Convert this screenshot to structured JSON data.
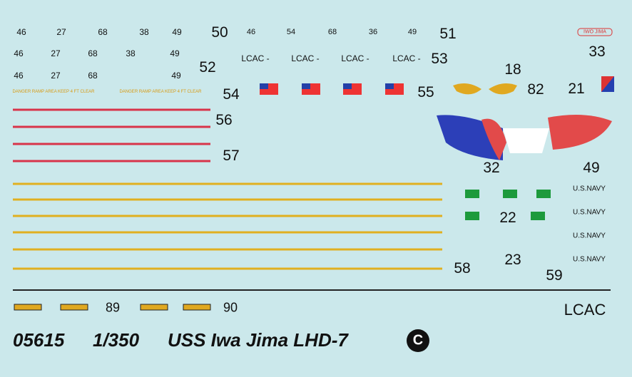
{
  "badge": "IWO JIMA",
  "hull_numbers": [
    [
      "46",
      "27",
      "68",
      "38",
      "49"
    ],
    [
      "46",
      "27",
      "68",
      "38",
      "49"
    ],
    [
      "46",
      "27",
      "68",
      "49"
    ]
  ],
  "lcac_numbers": [
    "46",
    "54",
    "68",
    "36",
    "49"
  ],
  "lcac_labels": [
    "LCAC -",
    "LCAC -",
    "LCAC -",
    "LCAC -"
  ],
  "danger_text": [
    "DANGER RAMP AREA KEEP 4 FT CLEAR",
    "DANGER RAMP AREA KEEP 4 FT CLEAR"
  ],
  "item_numbers": [
    "50",
    "51",
    "52",
    "53",
    "33",
    "18",
    "54",
    "55",
    "82",
    "21",
    "56",
    "57",
    "32",
    "49",
    "22",
    "23",
    "58",
    "59",
    "89",
    "90"
  ],
  "navy_labels": [
    "U.S.NAVY",
    "U.S.NAVY",
    "U.S.NAVY",
    "U.S.NAVY"
  ],
  "lcac_title": "LCAC",
  "footer": {
    "catalog": "05615",
    "scale": "1/350",
    "title": "USS Iwa Jima LHD-7",
    "mark": "C"
  }
}
